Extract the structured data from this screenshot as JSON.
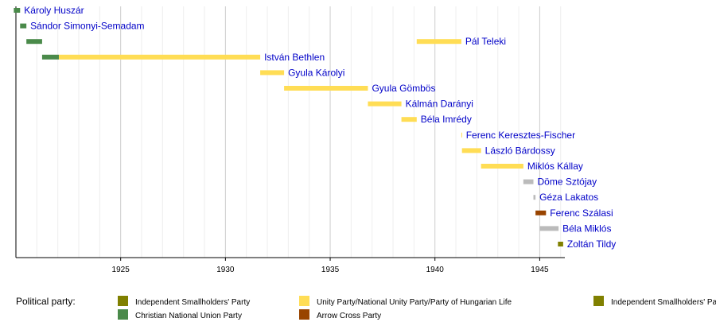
{
  "chart_data": {
    "type": "timeline",
    "xlim": [
      1920.0,
      1946.2
    ],
    "x_ticks": [
      1925,
      1930,
      1935,
      1940,
      1945
    ],
    "grid": true,
    "legend_title": "Political party:",
    "parties": [
      {
        "name": "Independent Smallholders' Party",
        "color": "#808000"
      },
      {
        "name": "Christian National Union Party",
        "color": "#4a8a4a"
      },
      {
        "name": "Unity Party/National Unity Party/Party of Hungarian Life",
        "color": "#ffdd55"
      },
      {
        "name": "Arrow Cross Party",
        "color": "#994400"
      },
      {
        "name": "Independent Smallholders' Party",
        "color": "#808000"
      }
    ],
    "ministers": [
      {
        "name": "Károly Huszár",
        "terms": [
          {
            "start": 1919.9,
            "end": 1920.2,
            "color": "#4a8a4a"
          }
        ]
      },
      {
        "name": "Sándor Simonyi-Semadam",
        "terms": [
          {
            "start": 1920.2,
            "end": 1920.5,
            "color": "#4a8a4a"
          }
        ]
      },
      {
        "name": "Pál Teleki",
        "terms": [
          {
            "start": 1920.5,
            "end": 1921.25,
            "color": "#4a8a4a"
          },
          {
            "start": 1939.13,
            "end": 1941.26,
            "color": "#ffdd55"
          }
        ]
      },
      {
        "name": "István Bethlen",
        "terms": [
          {
            "start": 1921.25,
            "end": 1922.05,
            "color": "#4a8a4a"
          },
          {
            "start": 1922.05,
            "end": 1931.66,
            "color": "#ffdd55"
          }
        ]
      },
      {
        "name": "Gyula Károlyi",
        "terms": [
          {
            "start": 1931.66,
            "end": 1932.8,
            "color": "#ffdd55"
          }
        ]
      },
      {
        "name": "Gyula Gömbös",
        "terms": [
          {
            "start": 1932.8,
            "end": 1936.8,
            "color": "#ffdd55"
          }
        ]
      },
      {
        "name": "Kálmán Darányi",
        "terms": [
          {
            "start": 1936.8,
            "end": 1938.4,
            "color": "#ffdd55"
          }
        ]
      },
      {
        "name": "Béla Imrédy",
        "terms": [
          {
            "start": 1938.4,
            "end": 1939.13,
            "color": "#ffdd55"
          }
        ]
      },
      {
        "name": "Ferenc Keresztes-Fischer",
        "terms": [
          {
            "start": 1941.26,
            "end": 1941.29,
            "color": "#ffdd55"
          }
        ]
      },
      {
        "name": "László Bárdossy",
        "terms": [
          {
            "start": 1941.29,
            "end": 1942.2,
            "color": "#ffdd55"
          }
        ]
      },
      {
        "name": "Miklós Kállay",
        "terms": [
          {
            "start": 1942.2,
            "end": 1944.22,
            "color": "#ffdd55"
          }
        ]
      },
      {
        "name": "Döme Sztójay",
        "terms": [
          {
            "start": 1944.22,
            "end": 1944.7,
            "color": "#bbbbbb"
          }
        ]
      },
      {
        "name": "Géza Lakatos",
        "terms": [
          {
            "start": 1944.7,
            "end": 1944.8,
            "color": "#bbbbbb"
          }
        ]
      },
      {
        "name": "Ferenc Szálasi",
        "terms": [
          {
            "start": 1944.8,
            "end": 1945.3,
            "color": "#994400"
          }
        ]
      },
      {
        "name": "Béla Miklós",
        "terms": [
          {
            "start": 1945.0,
            "end": 1945.9,
            "color": "#bbbbbb"
          }
        ]
      },
      {
        "name": "Zoltán Tildy",
        "terms": [
          {
            "start": 1945.87,
            "end": 1946.12,
            "color": "#808000"
          }
        ]
      }
    ]
  }
}
